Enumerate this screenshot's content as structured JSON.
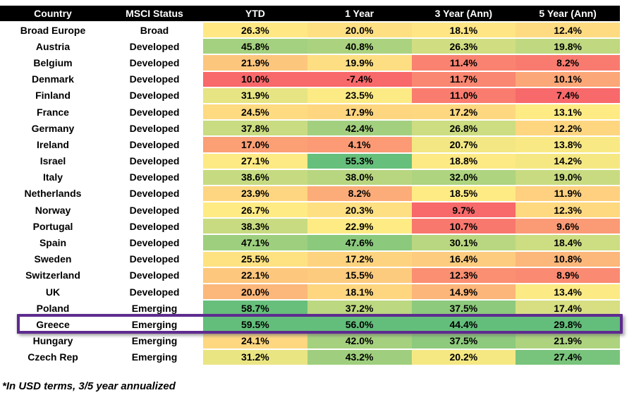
{
  "chart_data": {
    "type": "heatmap",
    "title": "",
    "header_labels": [
      "Country",
      "MSCI Status",
      "YTD",
      "1 Year",
      "3 Year (Ann)",
      "5 Year (Ann)"
    ],
    "columns": [
      "YTD",
      "1 Year",
      "3 Year (Ann)",
      "5 Year (Ann)"
    ],
    "value_format": "percent_one_decimal",
    "rows": [
      {
        "country": "Broad Europe",
        "status": "Broad",
        "values": [
          26.3,
          20.0,
          18.1,
          12.4
        ]
      },
      {
        "country": "Austria",
        "status": "Developed",
        "values": [
          45.8,
          40.8,
          26.3,
          19.8
        ]
      },
      {
        "country": "Belgium",
        "status": "Developed",
        "values": [
          21.9,
          19.9,
          11.4,
          8.2
        ]
      },
      {
        "country": "Denmark",
        "status": "Developed",
        "values": [
          10.0,
          -7.4,
          11.7,
          10.1
        ]
      },
      {
        "country": "Finland",
        "status": "Developed",
        "values": [
          31.9,
          23.5,
          11.0,
          7.4
        ]
      },
      {
        "country": "France",
        "status": "Developed",
        "values": [
          24.5,
          17.9,
          17.2,
          13.1
        ]
      },
      {
        "country": "Germany",
        "status": "Developed",
        "values": [
          37.8,
          42.4,
          26.8,
          12.2
        ]
      },
      {
        "country": "Ireland",
        "status": "Developed",
        "values": [
          17.0,
          4.1,
          20.7,
          13.8
        ]
      },
      {
        "country": "Israel",
        "status": "Developed",
        "values": [
          27.1,
          55.3,
          18.8,
          14.2
        ]
      },
      {
        "country": "Italy",
        "status": "Developed",
        "values": [
          38.6,
          38.0,
          32.0,
          19.0
        ]
      },
      {
        "country": "Netherlands",
        "status": "Developed",
        "values": [
          23.9,
          8.2,
          18.5,
          11.9
        ]
      },
      {
        "country": "Norway",
        "status": "Developed",
        "values": [
          26.7,
          20.3,
          9.7,
          12.3
        ]
      },
      {
        "country": "Portugal",
        "status": "Developed",
        "values": [
          38.3,
          22.9,
          10.7,
          9.6
        ]
      },
      {
        "country": "Spain",
        "status": "Developed",
        "values": [
          47.1,
          47.6,
          30.1,
          18.4
        ]
      },
      {
        "country": "Sweden",
        "status": "Developed",
        "values": [
          25.5,
          17.2,
          16.4,
          10.8
        ]
      },
      {
        "country": "Switzerland",
        "status": "Developed",
        "values": [
          22.1,
          15.5,
          12.3,
          8.9
        ]
      },
      {
        "country": "UK",
        "status": "Developed",
        "values": [
          20.0,
          18.1,
          14.9,
          13.4
        ]
      },
      {
        "country": "Poland",
        "status": "Emerging",
        "values": [
          58.7,
          37.2,
          37.5,
          17.4
        ]
      },
      {
        "country": "Greece",
        "status": "Emerging",
        "values": [
          59.5,
          56.0,
          44.4,
          29.8
        ]
      },
      {
        "country": "Hungary",
        "status": "Emerging",
        "values": [
          24.1,
          42.0,
          37.5,
          21.9
        ]
      },
      {
        "country": "Czech Rep",
        "status": "Emerging",
        "values": [
          31.2,
          43.2,
          20.2,
          27.4
        ]
      }
    ],
    "color_scale": {
      "min_color": "#F8696B",
      "mid_color": "#FFEB84",
      "max_color": "#63BE7B",
      "scope": "per_column",
      "midpoint": "median"
    },
    "highlighted_row": "Greece",
    "legend_position": "none",
    "grid": false
  },
  "highlight": {
    "border_color": "#5E2B8F"
  },
  "footnote": "*In USD terms, 3/5 year annualized",
  "theme": {
    "header_bg": "#000000",
    "header_text": "#FFFFFF",
    "body_text": "#000000",
    "background": "#FFFFFF"
  }
}
